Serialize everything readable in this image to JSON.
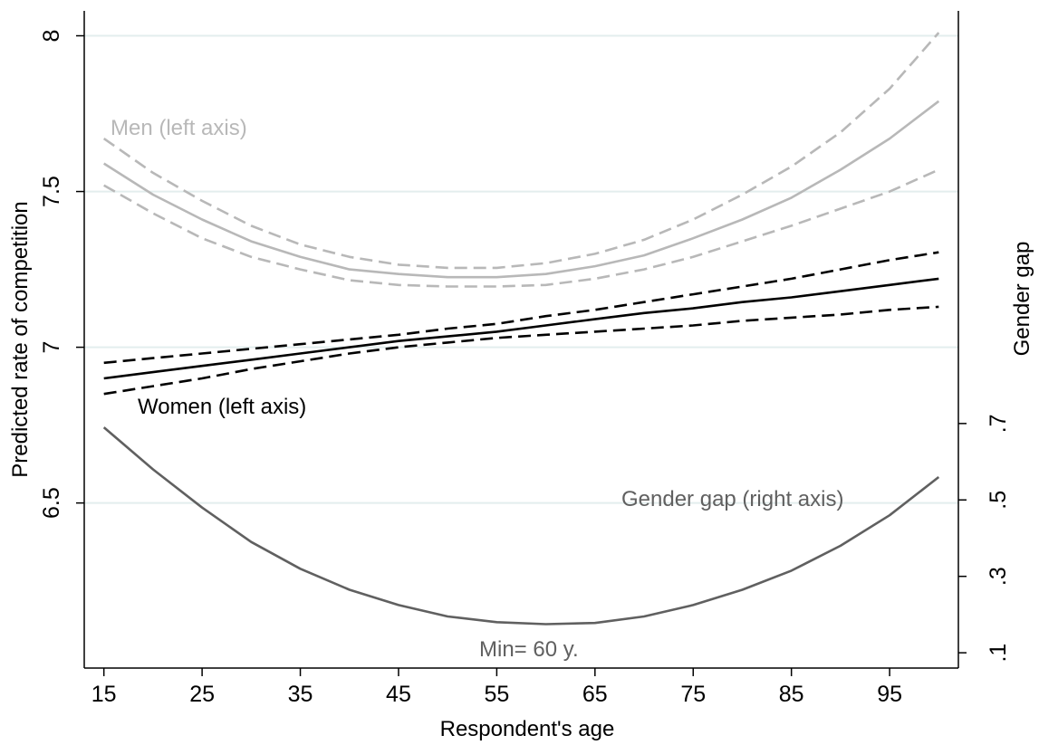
{
  "chart_data": {
    "type": "line",
    "xlabel": "Respondent's age",
    "ylabel_left": "Predicted rate of competition",
    "ylabel_right": "Gender gap",
    "x_ticks": [
      15,
      25,
      35,
      45,
      55,
      65,
      75,
      85,
      95
    ],
    "x_tick_labels": [
      "15",
      "25",
      "35",
      "45",
      "55",
      "65",
      "75",
      "85",
      "95"
    ],
    "xlim": [
      13,
      102
    ],
    "y_left_ticks": [
      6.5,
      7,
      7.5,
      8
    ],
    "y_left_tick_labels": [
      "6.5",
      "7",
      "7.5",
      "8"
    ],
    "ylim_left": [
      5.97,
      8.08
    ],
    "y_right_ticks": [
      0.1,
      0.3,
      0.5,
      0.7
    ],
    "y_right_tick_labels": [
      ".1",
      ".3",
      ".5",
      ".7"
    ],
    "ylim_right": [
      0.06,
      1.78
    ],
    "grid": "horizontal at left-axis ticks",
    "x": [
      15,
      20,
      25,
      30,
      35,
      40,
      45,
      50,
      55,
      60,
      65,
      70,
      75,
      80,
      85,
      90,
      95,
      100
    ],
    "series": [
      {
        "name": "Men (left axis)",
        "axis": "left",
        "style": "solid",
        "color": "#b8b8b8",
        "values": [
          7.59,
          7.49,
          7.41,
          7.34,
          7.29,
          7.25,
          7.235,
          7.225,
          7.225,
          7.235,
          7.26,
          7.295,
          7.35,
          7.41,
          7.48,
          7.57,
          7.67,
          7.79
        ]
      },
      {
        "name": "Men upper CI",
        "axis": "left",
        "style": "dashed",
        "color": "#b8b8b8",
        "values": [
          7.67,
          7.56,
          7.47,
          7.39,
          7.33,
          7.29,
          7.265,
          7.255,
          7.255,
          7.27,
          7.3,
          7.345,
          7.41,
          7.49,
          7.58,
          7.69,
          7.83,
          8.01
        ]
      },
      {
        "name": "Men lower CI",
        "axis": "left",
        "style": "dashed",
        "color": "#b8b8b8",
        "values": [
          7.52,
          7.43,
          7.35,
          7.29,
          7.25,
          7.215,
          7.2,
          7.195,
          7.195,
          7.2,
          7.22,
          7.25,
          7.29,
          7.34,
          7.39,
          7.445,
          7.5,
          7.57
        ]
      },
      {
        "name": "Women (left axis)",
        "axis": "left",
        "style": "solid",
        "color": "#000000",
        "values": [
          6.9,
          6.92,
          6.94,
          6.96,
          6.98,
          7.0,
          7.02,
          7.035,
          7.05,
          7.07,
          7.09,
          7.11,
          7.125,
          7.145,
          7.16,
          7.18,
          7.2,
          7.22
        ]
      },
      {
        "name": "Women upper CI",
        "axis": "left",
        "style": "dashed",
        "color": "#000000",
        "values": [
          6.95,
          6.965,
          6.98,
          6.995,
          7.01,
          7.025,
          7.04,
          7.06,
          7.075,
          7.1,
          7.12,
          7.145,
          7.17,
          7.195,
          7.22,
          7.25,
          7.28,
          7.305
        ]
      },
      {
        "name": "Women lower CI",
        "axis": "left",
        "style": "dashed",
        "color": "#000000",
        "values": [
          6.85,
          6.875,
          6.9,
          6.93,
          6.955,
          6.98,
          7.0,
          7.015,
          7.03,
          7.04,
          7.05,
          7.06,
          7.07,
          7.085,
          7.095,
          7.105,
          7.12,
          7.13
        ]
      },
      {
        "name": "Gender gap (right axis)",
        "axis": "right",
        "style": "solid",
        "color": "#606060",
        "values": [
          0.69,
          0.58,
          0.48,
          0.39,
          0.32,
          0.265,
          0.225,
          0.195,
          0.18,
          0.175,
          0.178,
          0.195,
          0.225,
          0.265,
          0.315,
          0.38,
          0.46,
          0.56
        ]
      }
    ],
    "annotations": [
      {
        "text": "Men (left axis)",
        "color": "#b8b8b8"
      },
      {
        "text": "Women (left axis)",
        "color": "#000000"
      },
      {
        "text": "Gender gap (right axis)",
        "color": "#606060"
      },
      {
        "text": "Min= 60 y.",
        "color": "#606060"
      }
    ]
  }
}
